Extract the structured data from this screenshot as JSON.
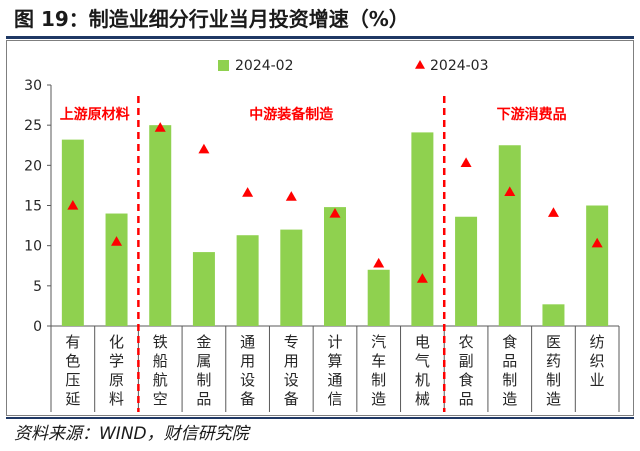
{
  "title": "图 19：制造业细分行业当月投资增速（%）",
  "source": "资料来源：WIND，财信研究院",
  "colors": {
    "bar": "#8fd14f",
    "marker": "#ff0000",
    "divider": "#ff0000",
    "accent": "#1f3864"
  },
  "chart_data": {
    "type": "bar",
    "categories": [
      [
        "有",
        "色",
        "压",
        "延"
      ],
      [
        "化",
        "学",
        "原",
        "料"
      ],
      [
        "铁",
        "船",
        "航",
        "空"
      ],
      [
        "金",
        "属",
        "制",
        "品"
      ],
      [
        "通",
        "用",
        "设",
        "备"
      ],
      [
        "专",
        "用",
        "设",
        "备"
      ],
      [
        "计",
        "算",
        "通",
        "信"
      ],
      [
        "汽",
        "车",
        "制",
        "造"
      ],
      [
        "电",
        "气",
        "机",
        "械"
      ],
      [
        "农",
        "副",
        "食",
        "品"
      ],
      [
        "食",
        "品",
        "制",
        "造"
      ],
      [
        "医",
        "药",
        "制",
        "造"
      ],
      [
        "纺",
        "织",
        "业"
      ]
    ],
    "series": [
      {
        "name": "2024-02",
        "kind": "bar",
        "values": [
          23.2,
          14.0,
          25.0,
          9.2,
          11.3,
          12.0,
          14.8,
          7.0,
          24.1,
          13.6,
          22.5,
          2.7,
          15.0
        ]
      },
      {
        "name": "2024-03",
        "kind": "marker",
        "values": [
          15.0,
          10.5,
          24.7,
          22.0,
          16.6,
          16.1,
          14.0,
          7.8,
          5.9,
          20.3,
          16.7,
          14.1,
          10.3
        ]
      }
    ],
    "ylim": [
      0,
      30
    ],
    "yticks": [
      0,
      5,
      10,
      15,
      20,
      25,
      30
    ],
    "grid": false,
    "legend": "top",
    "groups": [
      {
        "label": "上游原材料",
        "start": 0,
        "end": 1
      },
      {
        "label": "中游装备制造",
        "start": 2,
        "end": 8
      },
      {
        "label": "下游消费品",
        "start": 9,
        "end": 12
      }
    ],
    "dividers_after": [
      1,
      8
    ]
  }
}
